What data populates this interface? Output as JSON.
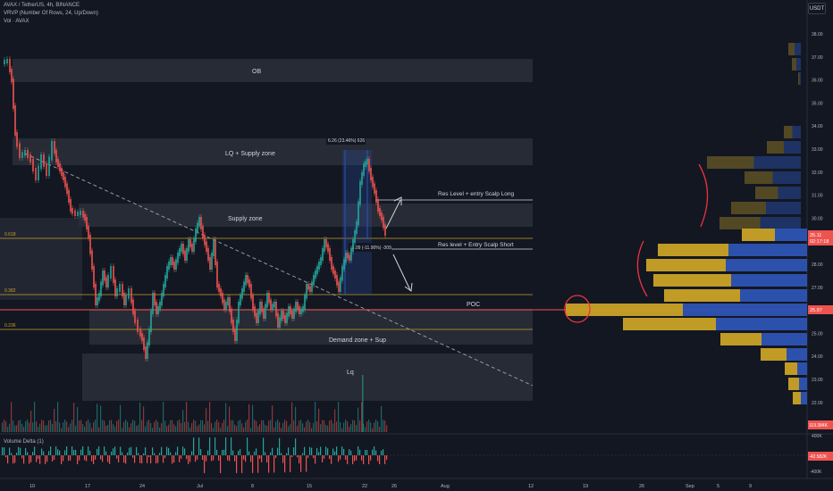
{
  "header": {
    "symbol_line": "AVAX / TetherUS, 4h, BINANCE",
    "vrvp_line": "VRVP (Number Of Rows, 24, Up/Down)",
    "vol_line": "Vol · AVAX",
    "currency_button": "USDT"
  },
  "colors": {
    "background": "#131722",
    "zone": "#2a2e39",
    "bull": "#26a69a",
    "bear": "#ef5350",
    "fib": "#c9a227",
    "poc": "#ef5350",
    "vp_up": "#c9a227",
    "vp_down": "#2d54b4"
  },
  "price_axis": {
    "ticks": [
      "38.00",
      "37.00",
      "36.00",
      "35.00",
      "34.00",
      "33.00",
      "32.00",
      "31.00",
      "30.00",
      "29.00",
      "28.00",
      "27.00",
      "26.00",
      "25.00",
      "24.00",
      "23.00",
      "22.00"
    ],
    "badges": [
      {
        "label": "25.11",
        "sub": "02:17:18"
      },
      {
        "label": "25.97"
      },
      {
        "label": "119.384K"
      }
    ]
  },
  "delta_axis": {
    "ticks": [
      "400K",
      "-400K"
    ],
    "badge": "-42.582K"
  },
  "time_axis": {
    "ticks": [
      "10",
      "17",
      "24",
      "Jul",
      "8",
      "15",
      "22",
      "26",
      "Aug",
      "12",
      "19",
      "26",
      "Sep",
      "5",
      "9"
    ]
  },
  "zones": {
    "ob": "OB",
    "lq_supply": "LQ + Supply zone",
    "supply": "Supply zone",
    "demand": "Demand zone + Sup",
    "lq": "Lq"
  },
  "fib_labels": [
    "0.618",
    "0.382",
    "0.236"
  ],
  "annotations": {
    "res_long": "Res Level + entry Scalp Long",
    "res_short": "Res level + Entry Scalp Short",
    "poc": "POC",
    "measure_up": "6.26 (23.46%) 626",
    "measure_down": "-3.09 (-11.90%) -309"
  },
  "indicator": {
    "name": "Volume Delta (1)"
  }
}
